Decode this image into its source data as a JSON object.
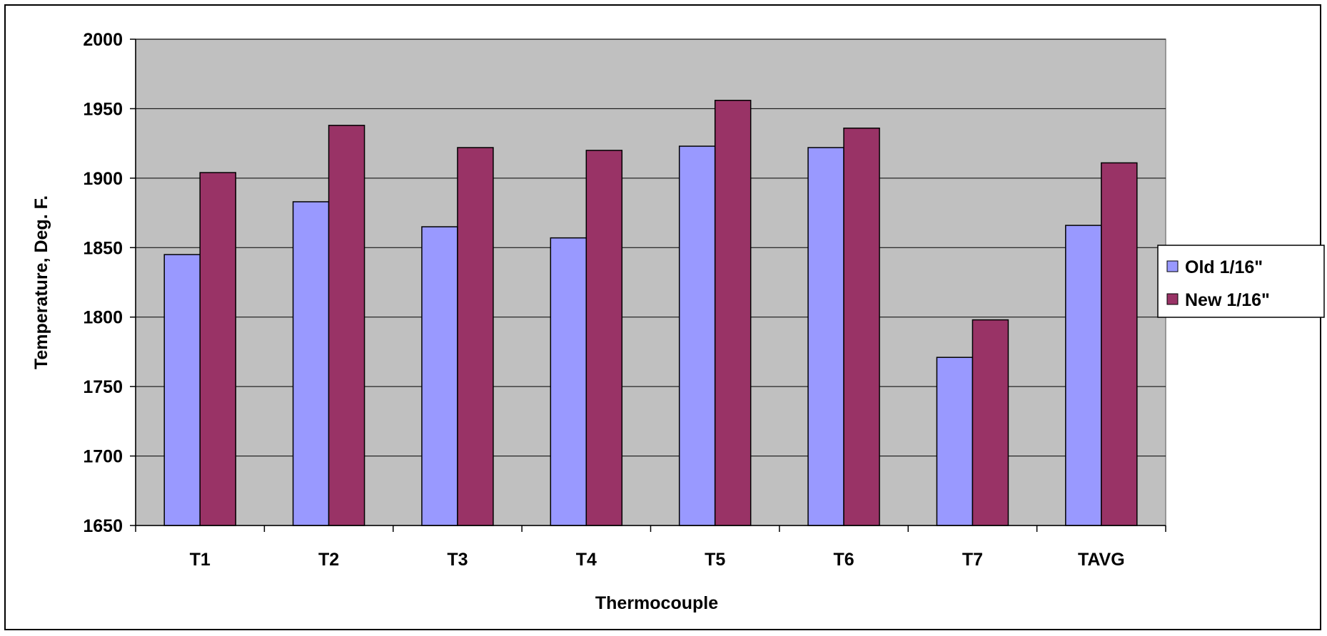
{
  "chart_data": {
    "type": "bar",
    "title": "",
    "xlabel": "Thermocouple",
    "ylabel": "Temperature, Deg. F.",
    "categories": [
      "T1",
      "T2",
      "T3",
      "T4",
      "T5",
      "T6",
      "T7",
      "TAVG"
    ],
    "series": [
      {
        "name": "Old 1/16\"",
        "color": "#9999ff",
        "values": [
          1845,
          1883,
          1865,
          1857,
          1923,
          1922,
          1771,
          1866
        ]
      },
      {
        "name": "New 1/16\"",
        "color": "#993366",
        "values": [
          1904,
          1938,
          1922,
          1920,
          1956,
          1936,
          1798,
          1911
        ]
      }
    ],
    "ylim": [
      1650,
      2000
    ],
    "yticks": [
      1650,
      1700,
      1750,
      1800,
      1850,
      1900,
      1950,
      2000
    ],
    "plot_background": "#c0c0c0",
    "grid": true,
    "legend": "right"
  }
}
